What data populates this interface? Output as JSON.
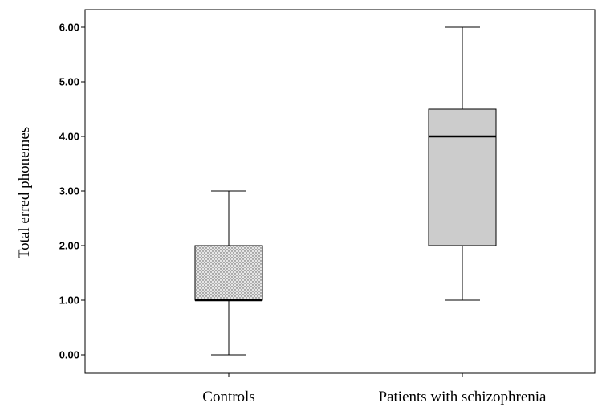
{
  "chart_data": {
    "type": "box",
    "ylabel": "Total erred phonemes",
    "xlabel": "",
    "ylim": [
      -0.25,
      6.35
    ],
    "yticks": [
      "0.00",
      "1.00",
      "2.00",
      "3.00",
      "4.00",
      "5.00",
      "6.00"
    ],
    "categories": [
      "Controls",
      "Patients with schizophrenia"
    ],
    "boxes": [
      {
        "category": "Controls",
        "min": 0,
        "q1": 1,
        "median": 1,
        "q3": 2,
        "max": 3,
        "fill": "dotted-gray"
      },
      {
        "category": "Patients with schizophrenia",
        "min": 1,
        "q1": 2,
        "median": 4,
        "q3": 4.5,
        "max": 6,
        "fill": "#cccccc"
      }
    ],
    "grid": false,
    "colors": {
      "box_fill": "#cccccc",
      "line": "#000000"
    }
  }
}
